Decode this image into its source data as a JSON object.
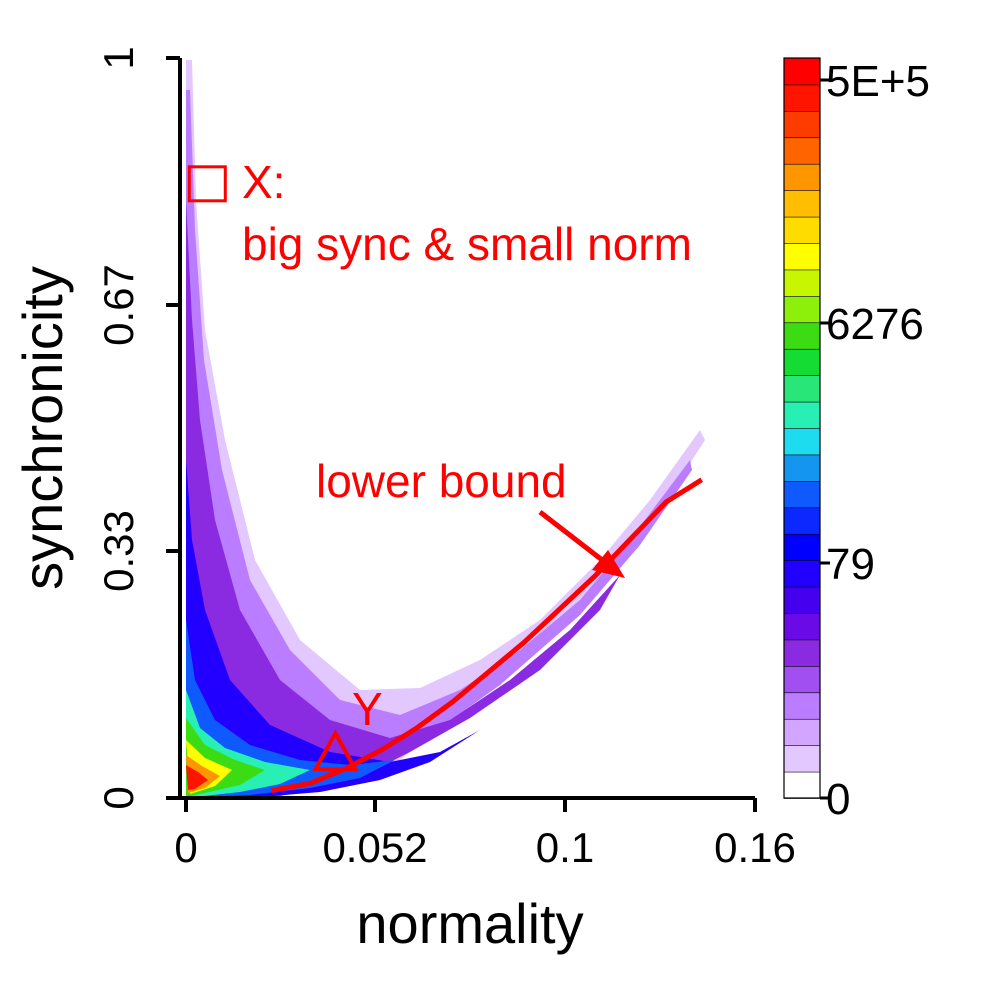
{
  "chart_data": {
    "type": "heatmap",
    "xlabel": "normality",
    "ylabel": "synchronicity",
    "xlim": [
      0,
      0.16
    ],
    "ylim": [
      0,
      1
    ],
    "x_ticks": [
      "0",
      "0.052",
      "0.1",
      "0.16"
    ],
    "y_ticks": [
      "0",
      "0.33",
      "0.67",
      "1"
    ],
    "colorbar": {
      "tick_labels": [
        "0",
        "79",
        "6276",
        "5E+5"
      ],
      "colors": [
        "#ffffff",
        "#e3c8ff",
        "#d2a6ff",
        "#bb7dff",
        "#a24ff2",
        "#8a2be2",
        "#6a0ae6",
        "#4400ee",
        "#2200ff",
        "#0000ff",
        "#0a28ff",
        "#0f5aff",
        "#1496f0",
        "#1edcf0",
        "#28f0b4",
        "#28e678",
        "#14dc32",
        "#3cdc14",
        "#8cf00a",
        "#c8f500",
        "#ffff00",
        "#ffdc00",
        "#ffbe00",
        "#ff9600",
        "#ff6400",
        "#ff3c00",
        "#ff1400",
        "#ff0000"
      ],
      "scale": "log"
    },
    "lower_bound": {
      "x": [
        0.024,
        0.035,
        0.045,
        0.055,
        0.065,
        0.075,
        0.085,
        0.095,
        0.105,
        0.115,
        0.125,
        0.135,
        0.145
      ],
      "y": [
        0.01,
        0.02,
        0.04,
        0.065,
        0.095,
        0.13,
        0.17,
        0.21,
        0.255,
        0.3,
        0.35,
        0.4,
        0.43
      ]
    },
    "annotations": {
      "x_label": "X:",
      "x_desc": "big sync & small norm",
      "y_label": "Y",
      "lower_bound_label": "lower bound"
    },
    "points": {
      "x_point": {
        "x": 0.006,
        "y": 0.83
      },
      "y_point": {
        "x": 0.042,
        "y": 0.055
      }
    }
  },
  "colors": {
    "accent": "#ff0000",
    "axis": "#000000"
  }
}
